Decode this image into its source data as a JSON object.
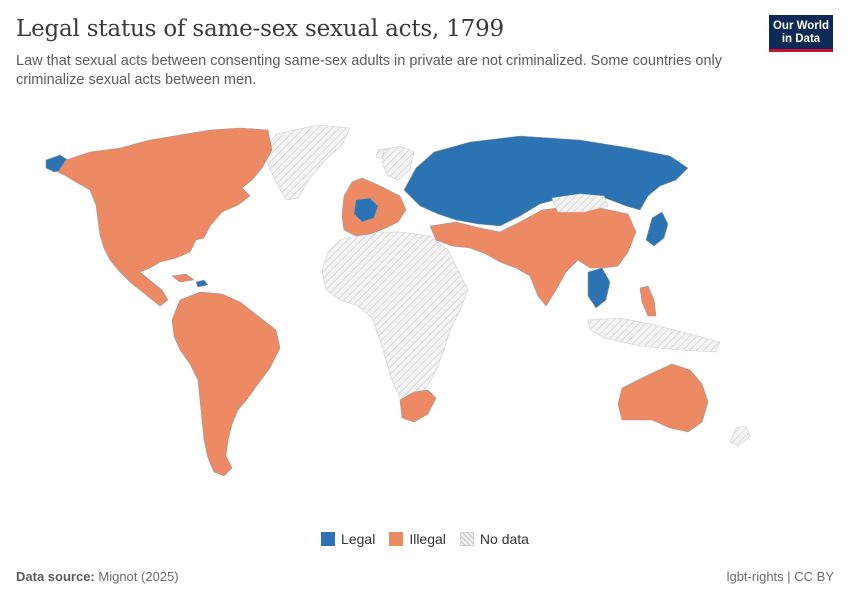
{
  "header": {
    "title": "Legal status of same-sex sexual acts, 1799",
    "subtitle": "Law that sexual acts between consenting same-sex adults in private are not criminalized. Some countries only criminalize sexual acts between men."
  },
  "logo": {
    "line1": "Our World",
    "line2": "in Data"
  },
  "legend": [
    {
      "label": "Legal",
      "color": "#2c73b4",
      "pattern": false
    },
    {
      "label": "Illegal",
      "color": "#ee8a63",
      "pattern": false
    },
    {
      "label": "No data",
      "color": "#e6e6e6",
      "pattern": true
    }
  ],
  "footer": {
    "source_label": "Data source:",
    "source_value": "Mignot (2025)",
    "right": "lgbt-rights | CC BY"
  },
  "colors": {
    "legal": "#2c73b4",
    "illegal": "#ee8a63",
    "nodata_stroke": "#cfcfcf",
    "border": "#9a9a9a"
  }
}
